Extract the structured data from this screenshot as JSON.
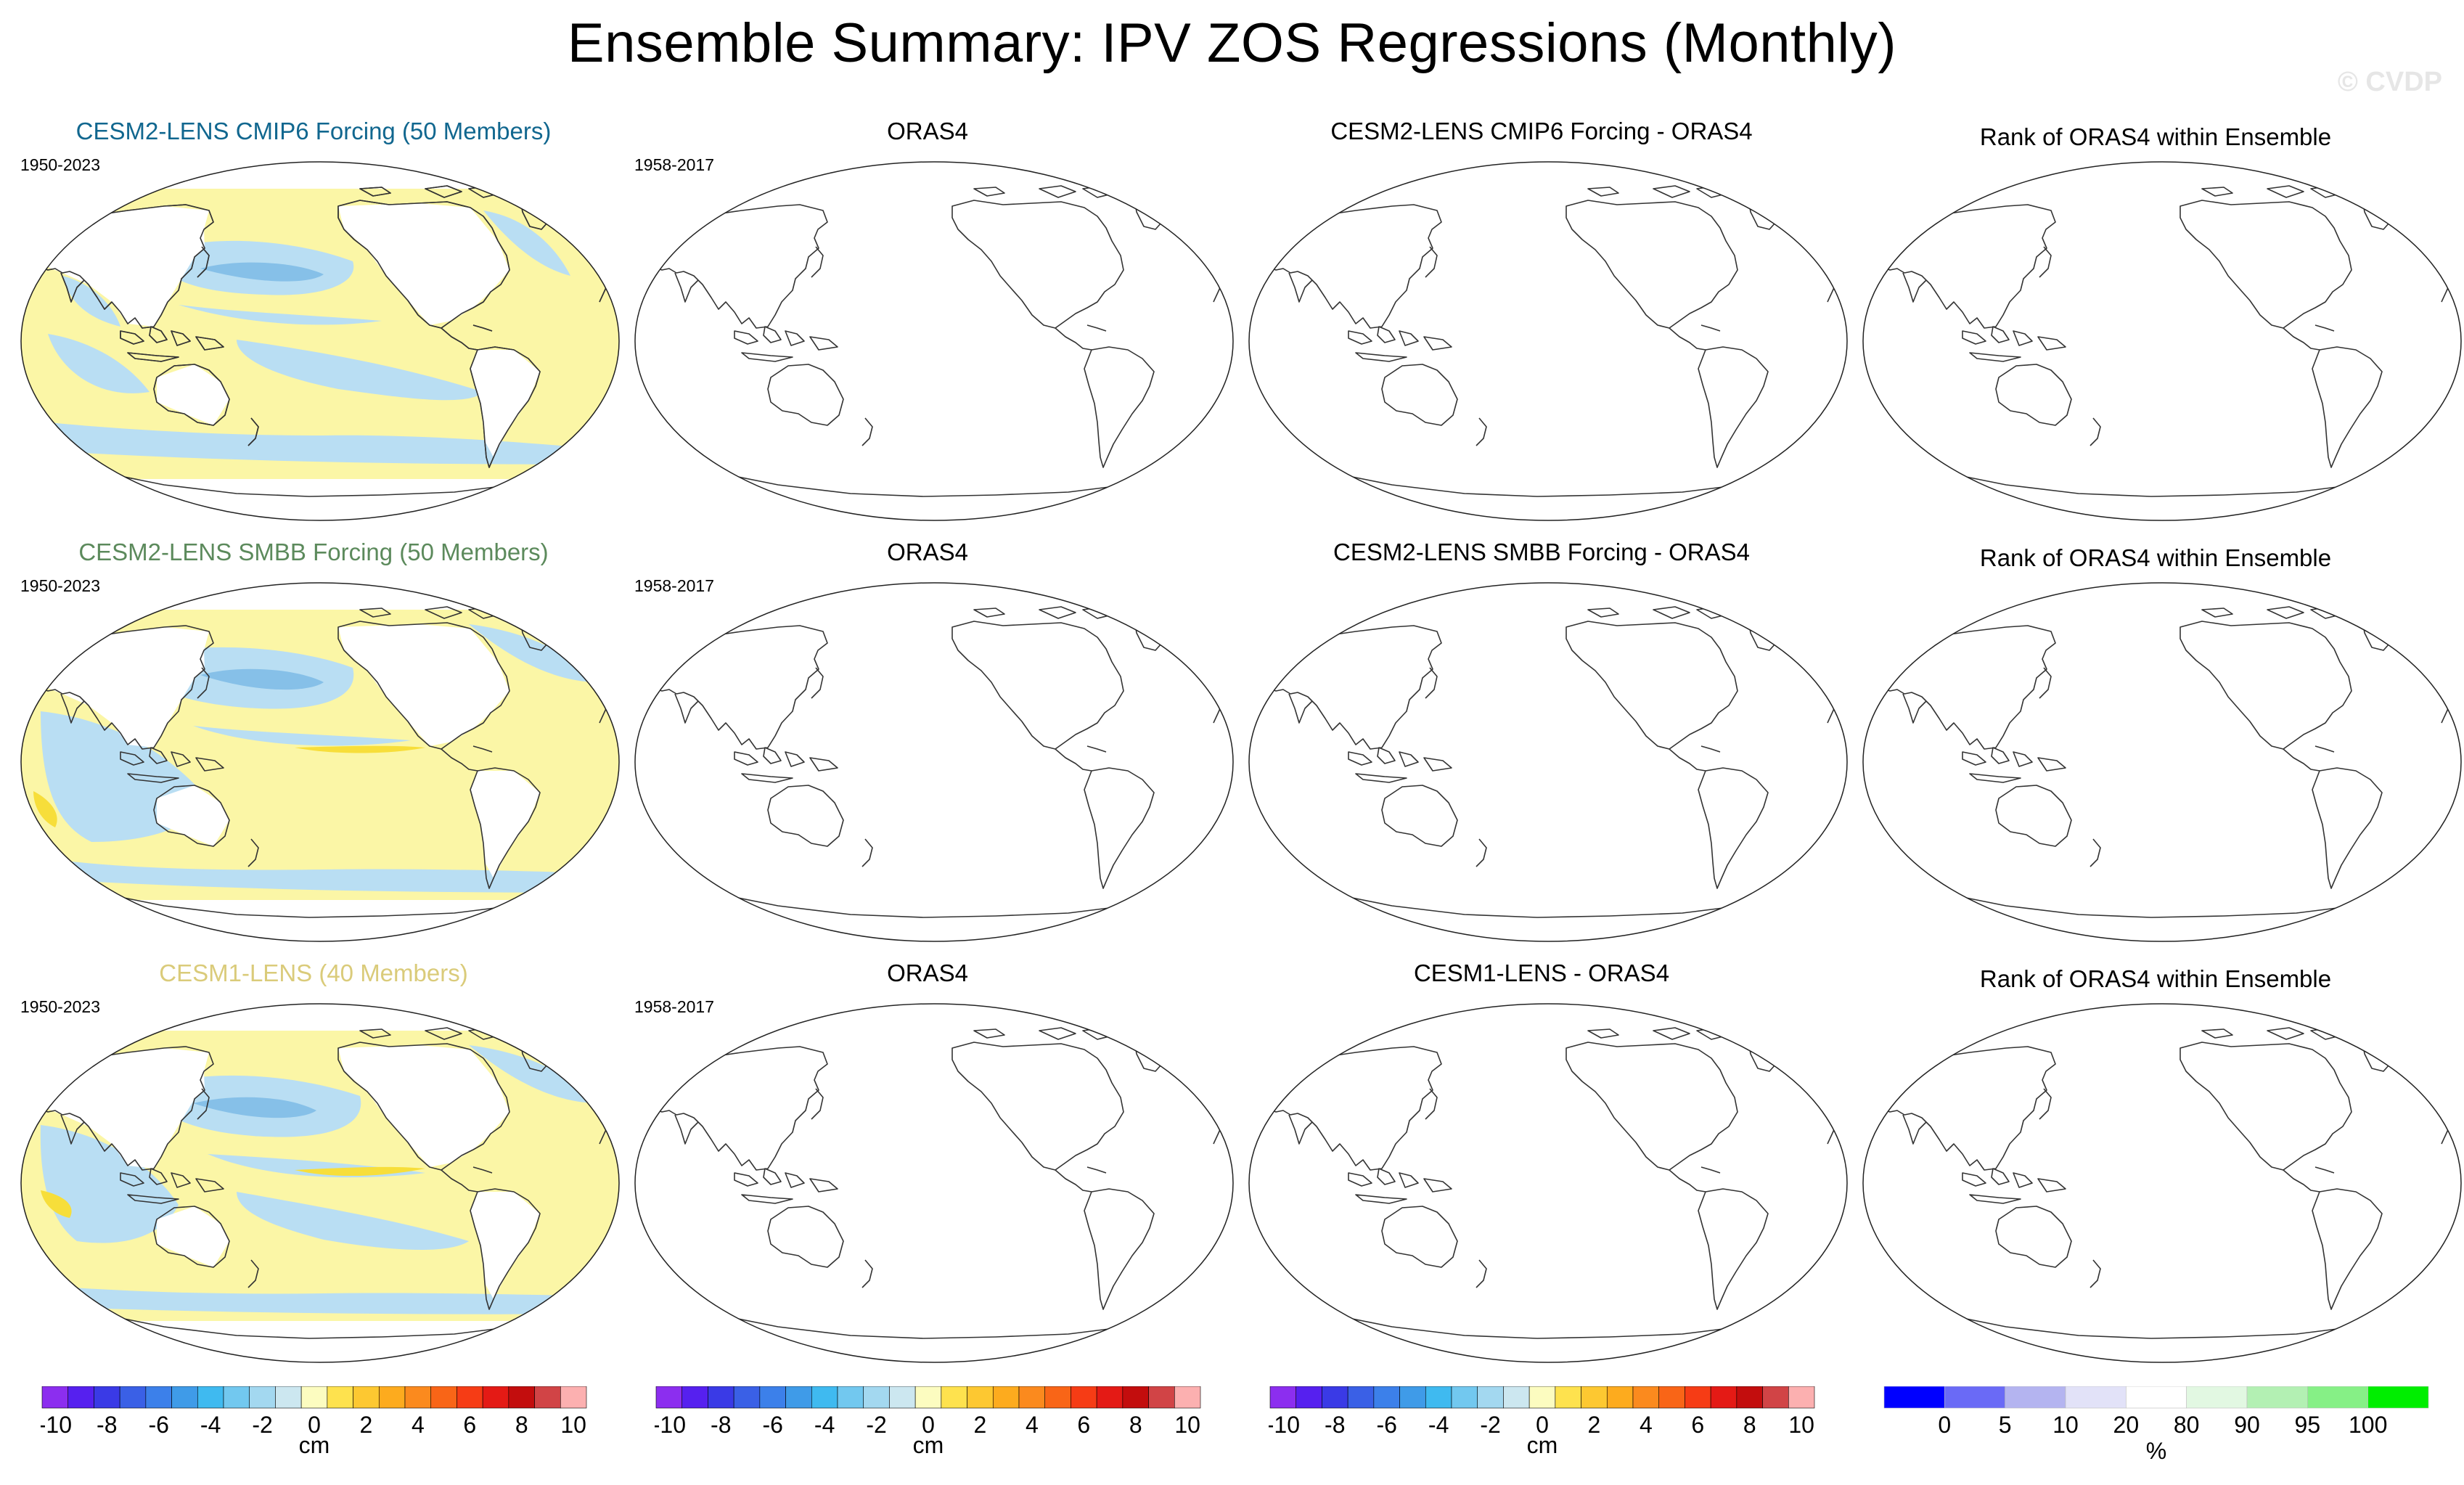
{
  "title": "Ensemble Summary: IPV ZOS Regressions (Monthly)",
  "watermark": "© CVDP",
  "colors": {
    "cesm2_cmip6": "#11678f",
    "cesm2_smbb": "#5c8a5c",
    "cesm1": "#dacb7a",
    "positive_fill": "#fbf6a6",
    "negative_fill": "#b9def3",
    "neg_strong_fill": "#86c0e8",
    "pos_strong_fill": "#f7de3a"
  },
  "rows": [
    {
      "ensemble_title": "CESM2-LENS CMIP6 Forcing (50 Members)",
      "ensemble_years": "1950-2023",
      "obs_title": "ORAS4",
      "obs_years": "1958-2017",
      "diff_title": "CESM2-LENS CMIP6 Forcing - ORAS4",
      "rank_title": "Rank of ORAS4 within Ensemble"
    },
    {
      "ensemble_title": "CESM2-LENS SMBB Forcing (50 Members)",
      "ensemble_years": "1950-2023",
      "obs_title": "ORAS4",
      "obs_years": "1958-2017",
      "diff_title": "CESM2-LENS SMBB Forcing - ORAS4",
      "rank_title": "Rank of ORAS4 within Ensemble"
    },
    {
      "ensemble_title": "CESM1-LENS (40 Members)",
      "ensemble_years": "1950-2023",
      "obs_title": "ORAS4",
      "obs_years": "1958-2017",
      "diff_title": "CESM1-LENS - ORAS4",
      "rank_title": "Rank of ORAS4 within Ensemble"
    }
  ],
  "chart_data": [
    {
      "type": "heatmap",
      "title": "CESM2-LENS CMIP6 Forcing (50 Members)",
      "period": "1950-2023",
      "units": "cm",
      "pattern": "IPV-positive: warm (positive) tropical Pacific and Indian Ocean, negative North Pacific and South Pacific lobes"
    },
    {
      "type": "heatmap",
      "title": "CESM2-LENS SMBB Forcing (50 Members)",
      "period": "1950-2023",
      "units": "cm",
      "pattern": "IPV-positive: positive tropical Pacific band (up to ~4 cm), negative North Pacific and West Pacific/Indian Ocean"
    },
    {
      "type": "heatmap",
      "title": "CESM1-LENS (40 Members)",
      "period": "1950-2023",
      "units": "cm",
      "pattern": "IPV-positive: positive tropical Pacific and Indian Ocean, negative North Pacific and South Pacific lobes"
    }
  ],
  "colorbar_cm": {
    "units": "cm",
    "levels": [
      -10,
      -9,
      -8,
      -7,
      -6,
      -5,
      -4,
      -3,
      -2,
      -1,
      0,
      1,
      2,
      3,
      4,
      5,
      6,
      7,
      8,
      9,
      10
    ],
    "tick_labels": [
      "-10",
      "-8",
      "-6",
      "-4",
      "-2",
      "0",
      "2",
      "4",
      "6",
      "8",
      "10"
    ],
    "colors": [
      "#8c2eef",
      "#5620ef",
      "#3a3ae6",
      "#3a60e6",
      "#3c80ea",
      "#3f9be8",
      "#3fbaf0",
      "#72c8ef",
      "#a3d8f0",
      "#cce7f0",
      "#fcfcc0",
      "#fee24e",
      "#fdc831",
      "#fdab1e",
      "#fb8a1e",
      "#f96517",
      "#f63c15",
      "#e41a15",
      "#c30d0d",
      "#d14446",
      "#fcb0b0"
    ]
  },
  "colorbar_rank": {
    "units": "%",
    "levels": [
      0,
      5,
      10,
      20,
      80,
      90,
      95,
      100
    ],
    "tick_labels": [
      "0",
      "5",
      "10",
      "20",
      "80",
      "90",
      "95",
      "100"
    ],
    "colors": [
      "#0000ff",
      "#6a6af6",
      "#b4b4f0",
      "#e2e2f8",
      "#ffffff",
      "#e2f8e2",
      "#b3f0b3",
      "#86f086",
      "#00ee00"
    ]
  }
}
